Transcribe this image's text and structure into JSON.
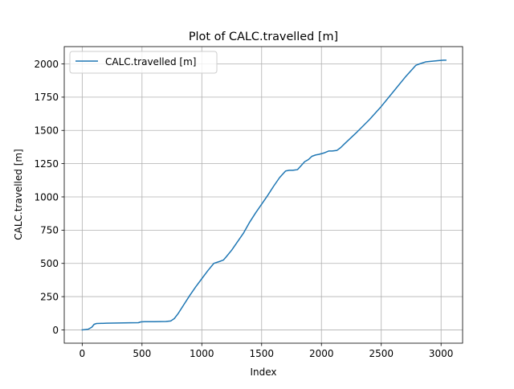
{
  "chart_data": {
    "type": "line",
    "title": "Plot of CALC.travelled [m]",
    "xlabel": "Index",
    "ylabel": "CALC.travelled [m]",
    "xlim": [
      -150,
      3180
    ],
    "ylim": [
      -100,
      2130
    ],
    "x_ticks": [
      0,
      500,
      1000,
      1500,
      2000,
      2500,
      3000
    ],
    "y_ticks": [
      0,
      250,
      500,
      750,
      1000,
      1250,
      1500,
      1750,
      2000
    ],
    "x_tick_labels": [
      "0",
      "500",
      "1000",
      "1500",
      "2000",
      "2500",
      "3000"
    ],
    "y_tick_labels": [
      "0",
      "250",
      "500",
      "750",
      "1000",
      "1250",
      "1500",
      "1750",
      "2000"
    ],
    "grid": true,
    "legend": {
      "position": "top-left",
      "entries": [
        "CALC.travelled [m]"
      ]
    },
    "series": [
      {
        "name": "CALC.travelled [m]",
        "color": "#1f77b4",
        "x": [
          0,
          50,
          80,
          100,
          120,
          200,
          300,
          400,
          470,
          490,
          520,
          600,
          700,
          740,
          770,
          800,
          850,
          900,
          950,
          1000,
          1050,
          1100,
          1150,
          1180,
          1200,
          1250,
          1300,
          1350,
          1400,
          1450,
          1500,
          1550,
          1600,
          1650,
          1700,
          1730,
          1760,
          1800,
          1830,
          1860,
          1890,
          1920,
          1950,
          1980,
          2020,
          2060,
          2090,
          2130,
          2160,
          2200,
          2300,
          2400,
          2500,
          2600,
          2700,
          2750,
          2790,
          2820,
          2870,
          2920,
          2980,
          3020,
          3040
        ],
        "y": [
          0,
          5,
          20,
          42,
          48,
          50,
          52,
          53,
          54,
          60,
          62,
          62,
          63,
          67,
          85,
          120,
          190,
          260,
          325,
          385,
          445,
          500,
          515,
          525,
          545,
          600,
          665,
          730,
          810,
          880,
          945,
          1010,
          1080,
          1145,
          1195,
          1200,
          1200,
          1205,
          1235,
          1265,
          1280,
          1305,
          1315,
          1320,
          1330,
          1345,
          1345,
          1350,
          1370,
          1405,
          1490,
          1580,
          1680,
          1790,
          1900,
          1950,
          1990,
          2000,
          2015,
          2020,
          2025,
          2028,
          2028
        ]
      }
    ]
  }
}
